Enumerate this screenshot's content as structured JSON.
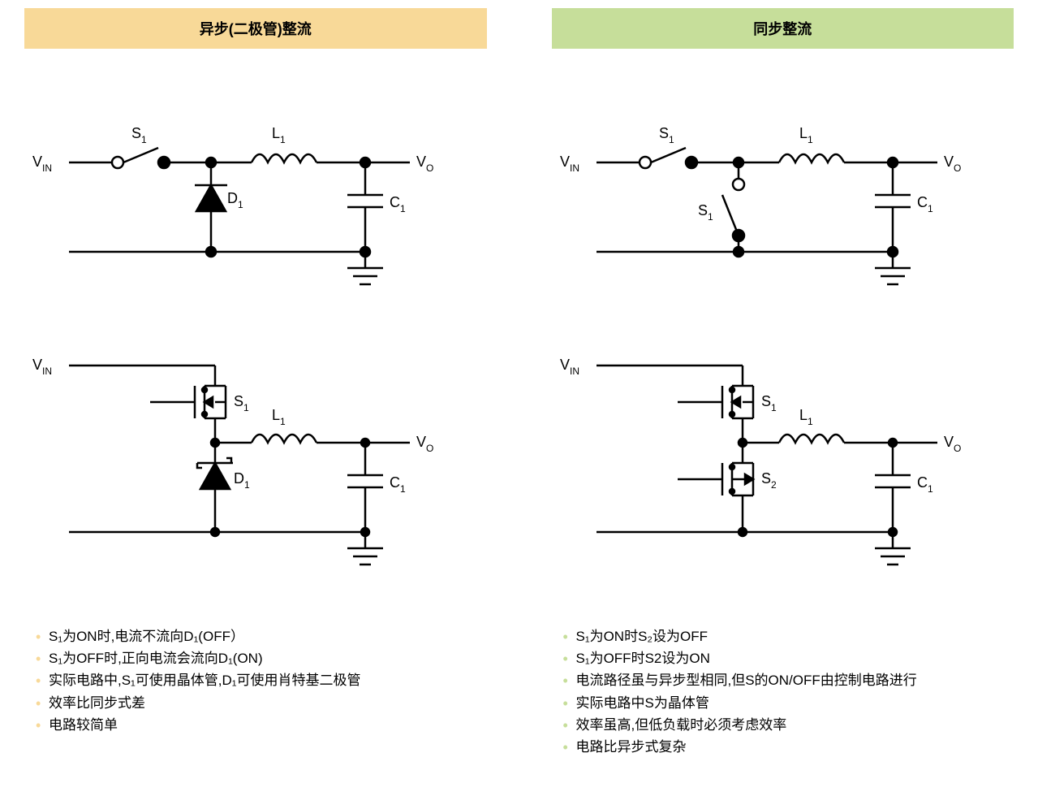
{
  "left": {
    "title": "异步(二极管)整流",
    "header_bg": "#f8d998",
    "bullet_color": "#f8d998",
    "labels": {
      "vin": "V",
      "vin_sub": "IN",
      "vo": "V",
      "vo_sub": "O",
      "s1": "S",
      "s1_sub": "1",
      "l1": "L",
      "l1_sub": "1",
      "d1": "D",
      "d1_sub": "1",
      "c1": "C",
      "c1_sub": "1"
    },
    "bullets": [
      "S₁为ON时,电流不流向D₁(OFF）",
      "S₁为OFF时,正向电流会流向D₁(ON)",
      "实际电路中,S₁可使用晶体管,D₁可使用肖特基二极管",
      "效率比同步式差",
      "电路较简单"
    ]
  },
  "right": {
    "title": "同步整流",
    "header_bg": "#c6de9a",
    "bullet_color": "#c6de9a",
    "labels": {
      "vin": "V",
      "vin_sub": "IN",
      "vo": "V",
      "vo_sub": "O",
      "s1": "S",
      "s1_sub": "1",
      "s2": "S",
      "s2_sub": "2",
      "l1": "L",
      "l1_sub": "1",
      "c1": "C",
      "c1_sub": "1"
    },
    "bullets": [
      "S₁为ON时S₂设为OFF",
      "S₁为OFF时S2设为ON",
      "电流路径虽与异步型相同,但S的ON/OFF由控制电路进行",
      "实际电路中S为晶体管",
      "效率虽高,但低负载时必须考虑效率",
      "电路比异步式复杂"
    ]
  },
  "stroke": "#000000",
  "stroke_width": 2.5
}
